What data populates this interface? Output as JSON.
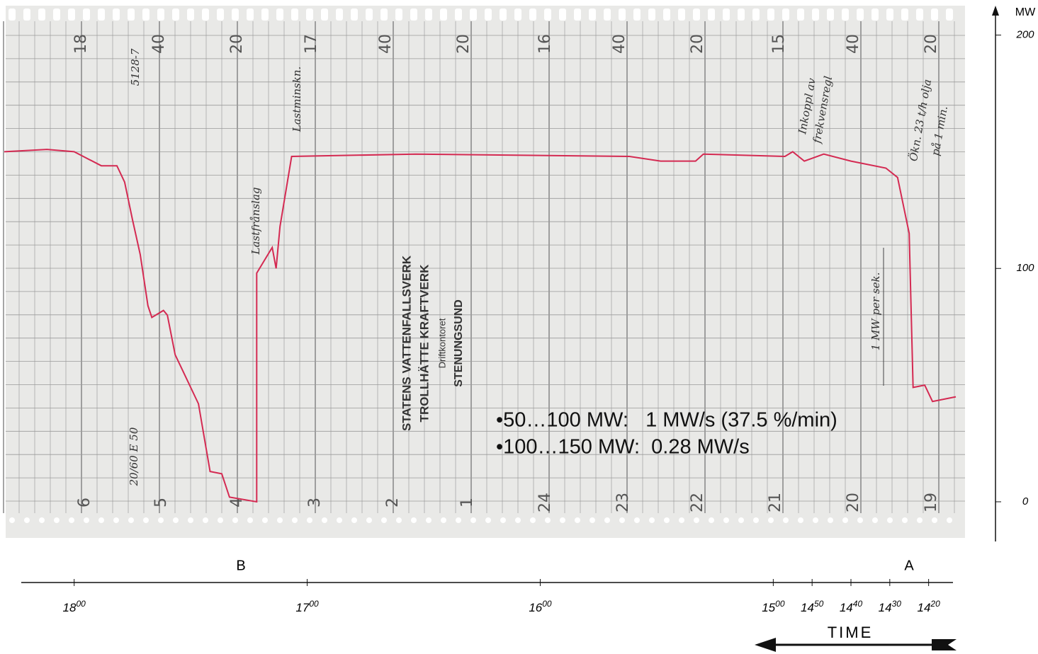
{
  "chart_data": {
    "type": "line",
    "x_label": "TIME",
    "y_label": "MW",
    "x": [
      1098,
      1087,
      1080,
      1073,
      1069,
      1067,
      1065,
      1063,
      1061,
      1060,
      1057,
      1056,
      1054,
      1052,
      1048,
      1045,
      1042,
      1040,
      1033,
      1033,
      1029,
      1028,
      1027,
      1024,
      992,
      937,
      929,
      920,
      918,
      897,
      895,
      892,
      887,
      880,
      871,
      868,
      865,
      864,
      861,
      859,
      853
    ],
    "series": [
      {
        "color": "#d42a52",
        "values": [
          150,
          151,
          150,
          144,
          144,
          137,
          121,
          106,
          84,
          79,
          82,
          80,
          63,
          56,
          42,
          13,
          12,
          2,
          0,
          98,
          109,
          100,
          118,
          148,
          149,
          148,
          146,
          146,
          149,
          148,
          150,
          146,
          149,
          146,
          143,
          139,
          115,
          49,
          50,
          43,
          45
        ]
      }
    ],
    "xlim": [
      1098,
      853
    ],
    "xticks": [
      {
        "value": 1080,
        "label": "1800"
      },
      {
        "value": 1020,
        "label": "1700"
      },
      {
        "value": 960,
        "label": "1600"
      },
      {
        "value": 900,
        "label": "1500"
      },
      {
        "value": 890,
        "label": "1450"
      },
      {
        "value": 880,
        "label": "1440"
      },
      {
        "value": 870,
        "label": "1430"
      },
      {
        "value": 860,
        "label": "1420"
      }
    ],
    "ylim": [
      -17,
      212
    ],
    "yticks": [
      0,
      100,
      200
    ],
    "markers": [
      "B",
      "A"
    ],
    "paper_top_labels": [
      "18",
      "40",
      "20",
      "17",
      "40",
      "20",
      "16",
      "40",
      "20",
      "15",
      "40",
      "20"
    ],
    "paper_bottom_labels": [
      "6",
      "5",
      "4",
      "3",
      "2",
      "1",
      "24",
      "23",
      "22",
      "21",
      "20",
      "19"
    ],
    "annotations": [
      "5128-7",
      "Lastfrånslag",
      "Lastminskn.",
      "Inkoppl av",
      "frekvensregl",
      "Ökn. 23 t/h olja",
      "på 1 min.",
      "1 MW per sek.",
      "20/60 E 50"
    ],
    "stamp": [
      "STATENS VATTENFALLSVERK",
      "TROLLHÄTTE KRAFTVERK",
      "Driftkontoret",
      "STENUNGSUND"
    ],
    "notes": [
      "•50…100 MW:   1 MW/s (37.5 %/min)",
      "•100…150 MW:  0.28 MW/s"
    ]
  }
}
